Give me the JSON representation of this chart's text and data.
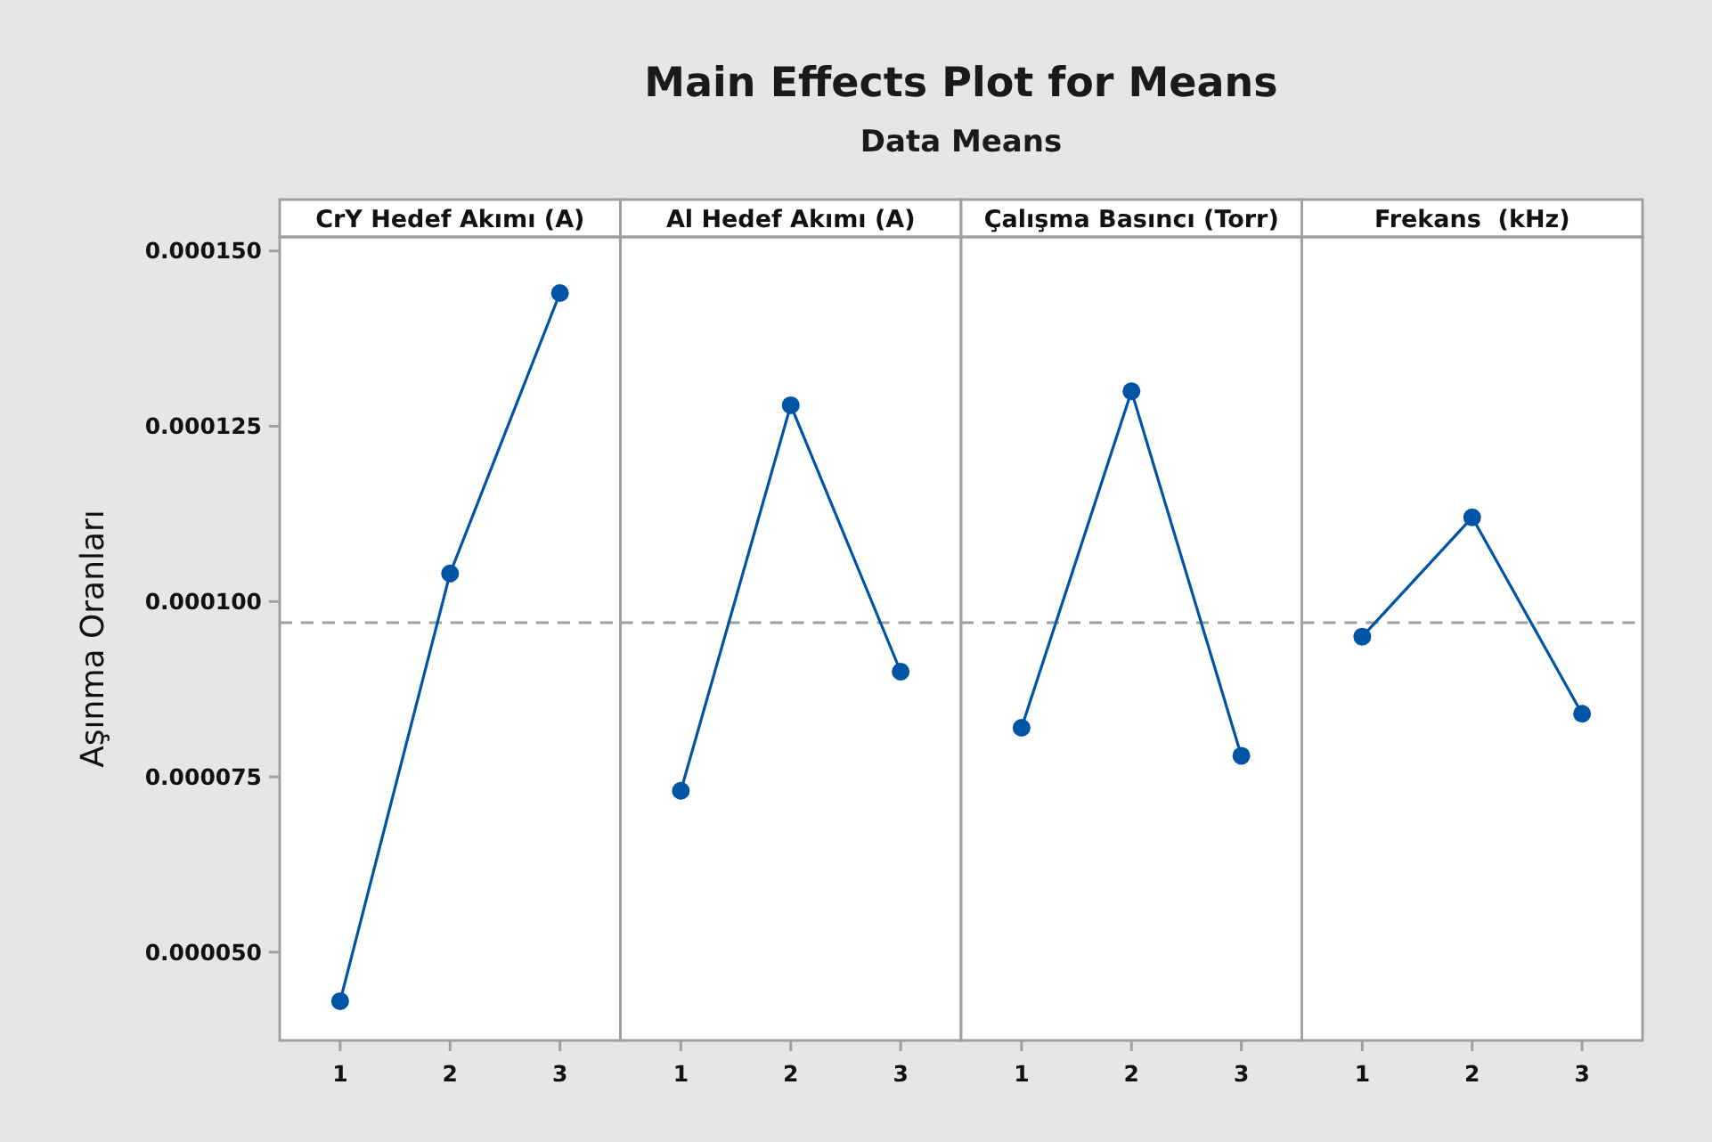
{
  "chart_data": [
    {
      "type": "other",
      "title": "Main Effects Plot for Means",
      "subtitle": "Data Means"
    },
    {
      "type": "line",
      "title": "CrY Hedef Akımı (A)",
      "ylabel": "Aşınma Oranları",
      "categories": [
        "1",
        "2",
        "3"
      ],
      "values": [
        4.3e-05,
        0.000104,
        0.000144
      ],
      "color": "#0054a6",
      "marker": "circle",
      "ylim": [
        3.74e-05,
        0.000152
      ],
      "yticks": [
        {
          "value": 5e-05,
          "label": "0.000050"
        },
        {
          "value": 7.5e-05,
          "label": "0.000075"
        },
        {
          "value": 0.0001,
          "label": "0.000100"
        },
        {
          "value": 0.000125,
          "label": "0.000125"
        },
        {
          "value": 0.00015,
          "label": "0.000150"
        }
      ],
      "ref_lines": [
        {
          "axis": "y",
          "value": 9.7e-05,
          "color": "#a0a0a0",
          "line_style": "dashed"
        }
      ],
      "grid": false
    },
    {
      "type": "line",
      "title": "Al Hedef Akımı (A)",
      "categories": [
        "1",
        "2",
        "3"
      ],
      "values": [
        7.3e-05,
        0.000128,
        9e-05
      ],
      "color": "#0054a6",
      "marker": "circle",
      "ylim": [
        3.74e-05,
        0.000152
      ],
      "tick_labels": "x",
      "ref_lines": [
        {
          "axis": "y",
          "value": 9.7e-05,
          "color": "#a0a0a0",
          "line_style": "dashed"
        }
      ],
      "grid": false
    },
    {
      "type": "line",
      "title": "Çalışma Basıncı (Torr)",
      "categories": [
        "1",
        "2",
        "3"
      ],
      "values": [
        8.2e-05,
        0.00013,
        7.8e-05
      ],
      "color": "#0054a6",
      "marker": "circle",
      "ylim": [
        3.74e-05,
        0.000152
      ],
      "tick_labels": "x",
      "ref_lines": [
        {
          "axis": "y",
          "value": 9.7e-05,
          "color": "#a0a0a0",
          "line_style": "dashed"
        }
      ],
      "grid": false
    },
    {
      "type": "line",
      "title": "Frekans  (kHz)",
      "categories": [
        "1",
        "2",
        "3"
      ],
      "values": [
        9.5e-05,
        0.000112,
        8.4e-05
      ],
      "color": "#0054a6",
      "marker": "circle",
      "ylim": [
        3.74e-05,
        0.000152
      ],
      "tick_labels": "x",
      "ref_lines": [
        {
          "axis": "y",
          "value": 9.7e-05,
          "color": "#a0a0a0",
          "line_style": "dashed"
        }
      ],
      "grid": false
    }
  ]
}
